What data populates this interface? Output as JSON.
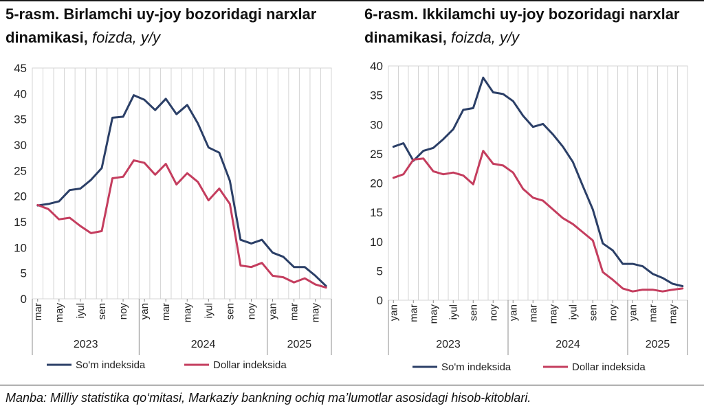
{
  "source_note": "Manba: Milliy statistika qo‘mitasi, Markaziy bankning ochiq ma’lumotlar asosidagi hisob-kitoblari.",
  "colors": {
    "som": "#2b3f67",
    "dollar": "#c43d5e",
    "grid": "#d4d4d4",
    "axis": "#8c8c8c"
  },
  "chart_data": [
    {
      "type": "line",
      "title": "5-rasm. Birlamchi uy-joy bozoridagi narxlar dinamikasi,",
      "title_unit": "foizda, y/y",
      "xlabel": "",
      "ylabel": "",
      "ylim": [
        0,
        45
      ],
      "yticks": [
        0,
        5,
        10,
        15,
        20,
        25,
        30,
        35,
        40,
        45
      ],
      "grid": "vertical",
      "legend": "bottom",
      "x": [
        "2023-03",
        "2023-04",
        "2023-05",
        "2023-06",
        "2023-07",
        "2023-08",
        "2023-09",
        "2023-10",
        "2023-11",
        "2023-12",
        "2024-01",
        "2024-02",
        "2024-03",
        "2024-04",
        "2024-05",
        "2024-06",
        "2024-07",
        "2024-08",
        "2024-09",
        "2024-10",
        "2024-11",
        "2024-12",
        "2025-01",
        "2025-02",
        "2025-03",
        "2025-04",
        "2025-05",
        "2025-06"
      ],
      "tick_labels": [
        {
          "i": 0,
          "label": "mar"
        },
        {
          "i": 2,
          "label": "may"
        },
        {
          "i": 4,
          "label": "iyul"
        },
        {
          "i": 6,
          "label": "sen"
        },
        {
          "i": 8,
          "label": "noy"
        },
        {
          "i": 10,
          "label": "yan"
        },
        {
          "i": 12,
          "label": "mar"
        },
        {
          "i": 14,
          "label": "may"
        },
        {
          "i": 16,
          "label": "iyul"
        },
        {
          "i": 18,
          "label": "sen"
        },
        {
          "i": 20,
          "label": "noy"
        },
        {
          "i": 22,
          "label": "yan"
        },
        {
          "i": 24,
          "label": "mar"
        },
        {
          "i": 26,
          "label": "may"
        }
      ],
      "years": [
        {
          "label": "2023",
          "from": 0,
          "to": 9
        },
        {
          "label": "2024",
          "from": 10,
          "to": 21
        },
        {
          "label": "2025",
          "from": 22,
          "to": 27
        }
      ],
      "series": [
        {
          "name": "So'm indeksida",
          "color": "#2b3f67",
          "values": [
            18.2,
            18.5,
            19.0,
            21.2,
            21.5,
            23.2,
            25.5,
            35.3,
            35.5,
            39.7,
            38.8,
            36.8,
            39.0,
            36.0,
            37.8,
            34.2,
            29.5,
            28.5,
            23.0,
            11.5,
            10.8,
            11.5,
            9.0,
            8.2,
            6.2,
            6.2,
            4.5,
            2.5
          ]
        },
        {
          "name": "Dollar indeksida",
          "color": "#c43d5e",
          "values": [
            18.3,
            17.5,
            15.5,
            15.8,
            14.2,
            12.8,
            13.2,
            23.5,
            23.8,
            27.0,
            26.5,
            24.2,
            26.3,
            22.3,
            24.5,
            22.8,
            19.2,
            21.5,
            18.5,
            6.5,
            6.2,
            7.0,
            4.5,
            4.2,
            3.2,
            4.0,
            2.8,
            2.2
          ]
        }
      ]
    },
    {
      "type": "line",
      "title": "6-rasm. Ikkilamchi uy-joy bozoridagi narxlar dinamikasi,",
      "title_unit": "foizda, y/y",
      "xlabel": "",
      "ylabel": "",
      "ylim": [
        0,
        40
      ],
      "yticks": [
        0,
        5,
        10,
        15,
        20,
        25,
        30,
        35,
        40
      ],
      "grid": "vertical",
      "legend": "bottom",
      "x": [
        "2023-01",
        "2023-02",
        "2023-03",
        "2023-04",
        "2023-05",
        "2023-06",
        "2023-07",
        "2023-08",
        "2023-09",
        "2023-10",
        "2023-11",
        "2023-12",
        "2024-01",
        "2024-02",
        "2024-03",
        "2024-04",
        "2024-05",
        "2024-06",
        "2024-07",
        "2024-08",
        "2024-09",
        "2024-10",
        "2024-11",
        "2024-12",
        "2025-01",
        "2025-02",
        "2025-03",
        "2025-04",
        "2025-05",
        "2025-06"
      ],
      "tick_labels": [
        {
          "i": 0,
          "label": "yan"
        },
        {
          "i": 2,
          "label": "mar"
        },
        {
          "i": 4,
          "label": "may"
        },
        {
          "i": 6,
          "label": "iyul"
        },
        {
          "i": 8,
          "label": "sen"
        },
        {
          "i": 10,
          "label": "noy"
        },
        {
          "i": 12,
          "label": "yan"
        },
        {
          "i": 14,
          "label": "mar"
        },
        {
          "i": 16,
          "label": "may"
        },
        {
          "i": 18,
          "label": "iyul"
        },
        {
          "i": 20,
          "label": "sen"
        },
        {
          "i": 22,
          "label": "noy"
        },
        {
          "i": 24,
          "label": "yan"
        },
        {
          "i": 26,
          "label": "mar"
        },
        {
          "i": 28,
          "label": "may"
        }
      ],
      "years": [
        {
          "label": "2023",
          "from": 0,
          "to": 11
        },
        {
          "label": "2024",
          "from": 12,
          "to": 23
        },
        {
          "label": "2025",
          "from": 24,
          "to": 29
        }
      ],
      "series": [
        {
          "name": "So'm indeksida",
          "color": "#2b3f67",
          "values": [
            26.2,
            26.8,
            23.8,
            25.5,
            26.0,
            27.5,
            29.2,
            32.5,
            32.8,
            38.0,
            35.5,
            35.2,
            34.0,
            31.5,
            29.6,
            30.1,
            28.3,
            26.2,
            23.6,
            19.5,
            15.5,
            9.7,
            8.5,
            6.2,
            6.2,
            5.8,
            4.5,
            3.8,
            2.8,
            2.4
          ]
        },
        {
          "name": "Dollar indeksida",
          "color": "#c43d5e",
          "values": [
            20.9,
            21.5,
            24.0,
            24.2,
            22.0,
            21.5,
            21.8,
            21.3,
            19.8,
            25.5,
            23.3,
            23.0,
            21.8,
            19.0,
            17.5,
            17.0,
            15.5,
            14.0,
            13.0,
            11.6,
            10.2,
            4.8,
            3.5,
            2.0,
            1.5,
            1.8,
            1.8,
            1.5,
            1.8,
            2.0
          ]
        }
      ]
    }
  ]
}
